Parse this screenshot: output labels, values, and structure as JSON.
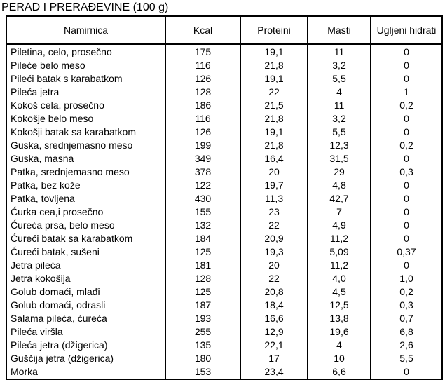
{
  "title": "PERAD I PRERAĐEVINE (100 g)",
  "table": {
    "columns": [
      "Namirnica",
      "Kcal",
      "Proteini",
      "Masti",
      "Ugljeni hidrati"
    ],
    "rows": [
      {
        "name": "Piletina, celo, prosečno",
        "kcal": "175",
        "proteini": "19,1",
        "masti": "11",
        "ugljeni_hidrati": "0"
      },
      {
        "name": "Pileće belo meso",
        "kcal": "116",
        "proteini": "21,8",
        "masti": "3,2",
        "ugljeni_hidrati": "0"
      },
      {
        "name": "Pileći batak s karabatkom",
        "kcal": "126",
        "proteini": "19,1",
        "masti": "5,5",
        "ugljeni_hidrati": "0"
      },
      {
        "name": "Pileća jetra",
        "kcal": "128",
        "proteini": "22",
        "masti": "4",
        "ugljeni_hidrati": "1"
      },
      {
        "name": "Kokoš cela, prosečno",
        "kcal": "186",
        "proteini": "21,5",
        "masti": "11",
        "ugljeni_hidrati": "0,2"
      },
      {
        "name": "Kokošje belo meso",
        "kcal": "116",
        "proteini": "21,8",
        "masti": "3,2",
        "ugljeni_hidrati": "0"
      },
      {
        "name": "Kokošji batak sa karabatkom",
        "kcal": "126",
        "proteini": "19,1",
        "masti": "5,5",
        "ugljeni_hidrati": "0"
      },
      {
        "name": "Guska, srednjemasno meso",
        "kcal": "199",
        "proteini": "21,8",
        "masti": "12,3",
        "ugljeni_hidrati": "0,2"
      },
      {
        "name": "Guska, masna",
        "kcal": "349",
        "proteini": "16,4",
        "masti": "31,5",
        "ugljeni_hidrati": "0"
      },
      {
        "name": "Patka, srednjemasno meso",
        "kcal": "378",
        "proteini": "20",
        "masti": "29",
        "ugljeni_hidrati": "0,3"
      },
      {
        "name": "Patka, bez kože",
        "kcal": "122",
        "proteini": "19,7",
        "masti": "4,8",
        "ugljeni_hidrati": "0"
      },
      {
        "name": "Patka, tovljena",
        "kcal": "430",
        "proteini": "11,3",
        "masti": "42,7",
        "ugljeni_hidrati": "0"
      },
      {
        "name": "Ćurka cea,i prosečno",
        "kcal": "155",
        "proteini": "23",
        "masti": "7",
        "ugljeni_hidrati": "0"
      },
      {
        "name": "Ćureća prsa, belo meso",
        "kcal": "132",
        "proteini": "22",
        "masti": "4,9",
        "ugljeni_hidrati": "0"
      },
      {
        "name": "Ćureći batak sa karabatkom",
        "kcal": "184",
        "proteini": "20,9",
        "masti": "11,2",
        "ugljeni_hidrati": "0"
      },
      {
        "name": "Ćureći batak, sušeni",
        "kcal": "125",
        "proteini": "19,3",
        "masti": "5,09",
        "ugljeni_hidrati": "0,37"
      },
      {
        "name": "Jetra pileća",
        "kcal": "181",
        "proteini": "20",
        "masti": "11,2",
        "ugljeni_hidrati": "0"
      },
      {
        "name": "Jetra kokošija",
        "kcal": "128",
        "proteini": "22",
        "masti": "4,0",
        "ugljeni_hidrati": "1,0"
      },
      {
        "name": "Golub domaći, mlađi",
        "kcal": "125",
        "proteini": "20,8",
        "masti": "4,5",
        "ugljeni_hidrati": "0,2"
      },
      {
        "name": "Golub domaći, odrasli",
        "kcal": "187",
        "proteini": "18,4",
        "masti": "12,5",
        "ugljeni_hidrati": "0,3"
      },
      {
        "name": "Salama pileća, ćureća",
        "kcal": "193",
        "proteini": "16,6",
        "masti": "13,8",
        "ugljeni_hidrati": "0,7"
      },
      {
        "name": "Pileća viršla",
        "kcal": "255",
        "proteini": "12,9",
        "masti": "19,6",
        "ugljeni_hidrati": "6,8"
      },
      {
        "name": "Pileća jetra (džigerica)",
        "kcal": "135",
        "proteini": "22,1",
        "masti": "4",
        "ugljeni_hidrati": "2,6"
      },
      {
        "name": "Guščija jetra (džigerica)",
        "kcal": "180",
        "proteini": "17",
        "masti": "10",
        "ugljeni_hidrati": "5,5"
      },
      {
        "name": "Morka",
        "kcal": "153",
        "proteini": "23,4",
        "masti": "6,6",
        "ugljeni_hidrati": "0"
      }
    ]
  }
}
